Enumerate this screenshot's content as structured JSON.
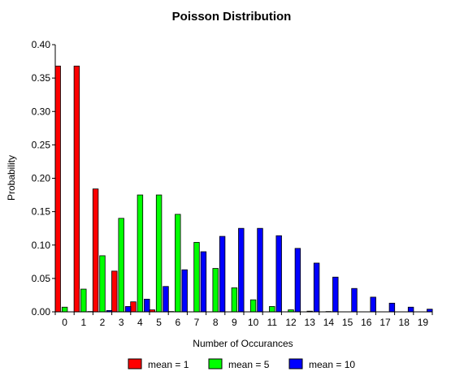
{
  "chart_data": {
    "type": "bar",
    "title": "Poisson Distribution",
    "xlabel": "Number of Occurances",
    "ylabel": "Probability",
    "ylim": [
      0,
      0.4
    ],
    "yticks": [
      "0.00",
      "0.05",
      "0.10",
      "0.15",
      "0.20",
      "0.25",
      "0.30",
      "0.35",
      "0.40"
    ],
    "grid": false,
    "legend_position": "bottom",
    "categories": [
      "0",
      "1",
      "2",
      "3",
      "4",
      "5",
      "6",
      "7",
      "8",
      "9",
      "10",
      "11",
      "12",
      "13",
      "14",
      "15",
      "16",
      "17",
      "18",
      "19"
    ],
    "series": [
      {
        "name": "mean = 1",
        "color": "#ff0000",
        "values": [
          0.368,
          0.368,
          0.184,
          0.061,
          0.015,
          0.003,
          0.0005,
          0.0001,
          0,
          0,
          0,
          0,
          0,
          0,
          0,
          0,
          0,
          0,
          0,
          0
        ]
      },
      {
        "name": "mean = 5",
        "color": "#00ff00",
        "values": [
          0.007,
          0.034,
          0.084,
          0.14,
          0.175,
          0.175,
          0.146,
          0.104,
          0.065,
          0.036,
          0.018,
          0.008,
          0.003,
          0.001,
          0.0005,
          0.0002,
          0,
          0,
          0,
          0
        ]
      },
      {
        "name": "mean = 10",
        "color": "#0000ff",
        "values": [
          5e-05,
          0.0005,
          0.002,
          0.008,
          0.019,
          0.038,
          0.063,
          0.09,
          0.113,
          0.125,
          0.125,
          0.114,
          0.095,
          0.073,
          0.052,
          0.035,
          0.022,
          0.013,
          0.007,
          0.004
        ]
      }
    ]
  }
}
